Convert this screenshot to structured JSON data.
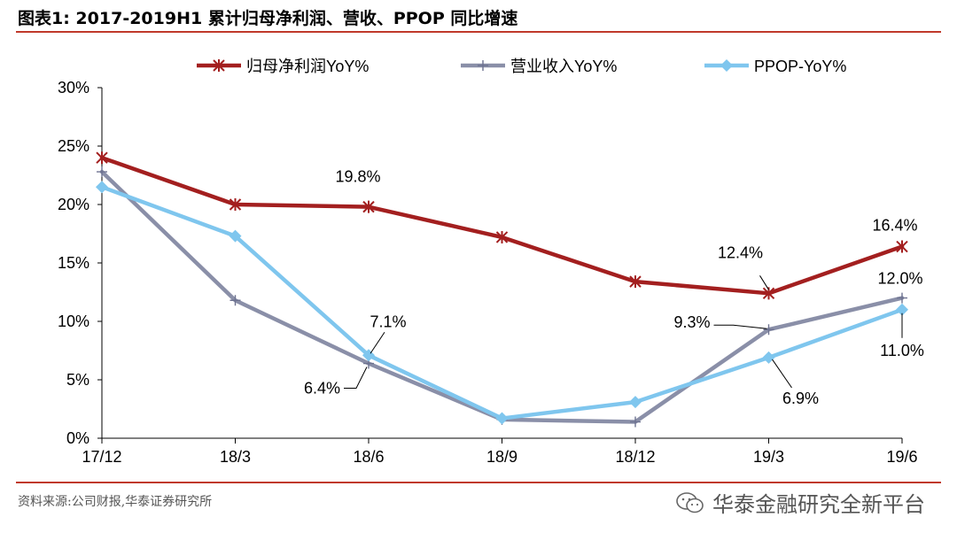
{
  "header": {
    "title": "图表1:   2017-2019H1 累计归母净利润、营收、PPOP 同比增速"
  },
  "footer": {
    "source": "资料来源:公司财报,华泰证券研究所",
    "brand": "华泰金融研究全新平台",
    "brand_icon": "wechat-icon"
  },
  "chart_data": {
    "type": "line",
    "categories": [
      "17/12",
      "18/3",
      "18/6",
      "18/9",
      "18/12",
      "19/3",
      "19/6"
    ],
    "ylim": [
      0,
      30
    ],
    "yticks": [
      0,
      5,
      10,
      15,
      20,
      25,
      30
    ],
    "ytick_labels": [
      "0%",
      "5%",
      "10%",
      "15%",
      "20%",
      "25%",
      "30%"
    ],
    "grid": false,
    "legend": "top",
    "series": [
      {
        "name": "归母净利润YoY%",
        "values": [
          24.0,
          20.0,
          19.8,
          17.2,
          13.4,
          12.4,
          16.4
        ],
        "color": "#a31f1f",
        "marker": "asterisk"
      },
      {
        "name": "营业收入YoY%",
        "values": [
          22.8,
          11.8,
          6.4,
          1.6,
          1.4,
          9.3,
          12.0
        ],
        "color": "#8a8fa8",
        "marker": "plus"
      },
      {
        "name": "PPOP-YoY%",
        "values": [
          21.5,
          17.3,
          7.1,
          1.7,
          3.1,
          6.9,
          11.0
        ],
        "color": "#7fc6ee",
        "marker": "diamond"
      }
    ],
    "annotations": [
      {
        "series": 0,
        "index": 2,
        "text": "19.8%"
      },
      {
        "series": 0,
        "index": 5,
        "text": "12.4%"
      },
      {
        "series": 0,
        "index": 6,
        "text": "16.4%"
      },
      {
        "series": 1,
        "index": 2,
        "text": "6.4%"
      },
      {
        "series": 1,
        "index": 5,
        "text": "9.3%"
      },
      {
        "series": 1,
        "index": 6,
        "text": "12.0%"
      },
      {
        "series": 2,
        "index": 2,
        "text": "7.1%"
      },
      {
        "series": 2,
        "index": 5,
        "text": "6.9%"
      },
      {
        "series": 2,
        "index": 6,
        "text": "11.0%"
      }
    ]
  }
}
